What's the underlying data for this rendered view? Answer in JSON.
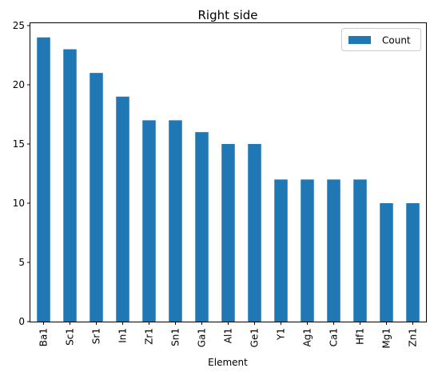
{
  "chart_data": {
    "type": "bar",
    "title": "Right side",
    "xlabel": "Element",
    "ylabel": "",
    "categories": [
      "Ba1",
      "Sc1",
      "Sr1",
      "In1",
      "Zr1",
      "Sn1",
      "Ga1",
      "Al1",
      "Ge1",
      "Y1",
      "Ag1",
      "Ca1",
      "Hf1",
      "Mg1",
      "Zn1"
    ],
    "series": [
      {
        "name": "Count",
        "values": [
          24,
          23,
          21,
          19,
          17,
          17,
          16,
          15,
          15,
          12,
          12,
          12,
          12,
          10,
          10
        ],
        "color": "#1f77b4"
      }
    ],
    "ylim": [
      0,
      25.2
    ],
    "yticks": [
      0,
      5,
      10,
      15,
      20,
      25
    ],
    "grid": false,
    "legend_position": "top-right"
  }
}
